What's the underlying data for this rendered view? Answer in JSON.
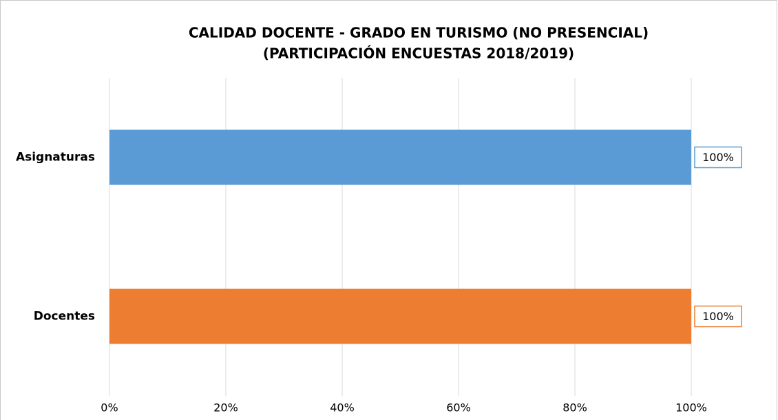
{
  "chart_data": {
    "type": "bar",
    "orientation": "horizontal",
    "title": [
      "CALIDAD DOCENTE - GRADO EN TURISMO (NO PRESENCIAL)",
      "(PARTICIPACIÓN ENCUESTAS 2018/2019)"
    ],
    "categories": [
      "Asignaturas",
      "Docentes"
    ],
    "values": [
      100,
      100
    ],
    "value_labels": [
      "100%",
      "100%"
    ],
    "colors": [
      "#5b9bd5",
      "#ed7d31"
    ],
    "xlim": [
      0,
      100
    ],
    "xticks": [
      {
        "value": 0,
        "label": "0%"
      },
      {
        "value": 20,
        "label": "20%"
      },
      {
        "value": 40,
        "label": "40%"
      },
      {
        "value": 60,
        "label": "60%"
      },
      {
        "value": 80,
        "label": "80%"
      },
      {
        "value": 100,
        "label": "100%"
      }
    ],
    "grid": true
  }
}
